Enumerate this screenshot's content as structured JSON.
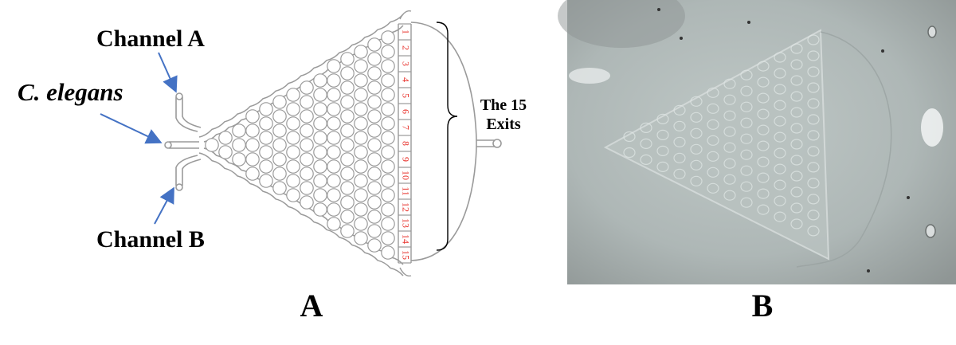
{
  "panel_a": {
    "label_channel_a": "Channel A",
    "label_c_elegans": "C. elegans",
    "label_channel_b": "Channel B",
    "exits_label_line1": "The 15",
    "exits_label_line2": "Exits",
    "exit_numbers": [
      "1",
      "2",
      "3",
      "4",
      "5",
      "6",
      "7",
      "8",
      "9",
      "10",
      "11",
      "12",
      "13",
      "14",
      "15"
    ],
    "panel_letter": "A"
  },
  "panel_b": {
    "panel_letter": "B"
  },
  "colors": {
    "arrow": "#4472c4",
    "exit_numbers": "#e8302a",
    "device_outline": "#9a9a9a",
    "text": "#000000"
  }
}
